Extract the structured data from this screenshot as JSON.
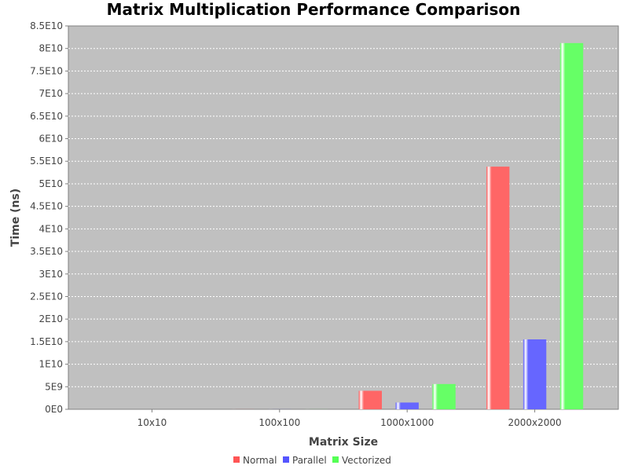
{
  "chart_data": {
    "type": "bar",
    "title": "Matrix Multiplication Performance Comparison",
    "xlabel": "Matrix Size",
    "ylabel": "Time (ns)",
    "categories": [
      "10x10",
      "100x100",
      "1000x1000",
      "2000x2000"
    ],
    "series": [
      {
        "name": "Normal",
        "color": "#ff5555",
        "values": [
          0,
          10000000.0,
          4100000000.0,
          53800000000.0
        ]
      },
      {
        "name": "Parallel",
        "color": "#5555ff",
        "values": [
          0,
          10000000.0,
          1500000000.0,
          15500000000.0
        ]
      },
      {
        "name": "Vectorized",
        "color": "#55ff55",
        "values": [
          0,
          10000000.0,
          5600000000.0,
          81200000000.0
        ]
      }
    ],
    "ylim": [
      0,
      85000000000
    ],
    "y_ticks": [
      {
        "value": 0,
        "label": "0E0"
      },
      {
        "value": 5000000000,
        "label": "5E9"
      },
      {
        "value": 10000000000,
        "label": "1E10"
      },
      {
        "value": 15000000000,
        "label": "1.5E10"
      },
      {
        "value": 20000000000,
        "label": "2E10"
      },
      {
        "value": 25000000000,
        "label": "2.5E10"
      },
      {
        "value": 30000000000,
        "label": "3E10"
      },
      {
        "value": 35000000000,
        "label": "3.5E10"
      },
      {
        "value": 40000000000,
        "label": "4E10"
      },
      {
        "value": 45000000000,
        "label": "4.5E10"
      },
      {
        "value": 50000000000,
        "label": "5E10"
      },
      {
        "value": 55000000000,
        "label": "5.5E10"
      },
      {
        "value": 60000000000,
        "label": "6E10"
      },
      {
        "value": 65000000000,
        "label": "6.5E10"
      },
      {
        "value": 70000000000,
        "label": "7E10"
      },
      {
        "value": 75000000000,
        "label": "7.5E10"
      },
      {
        "value": 80000000000,
        "label": "8E10"
      },
      {
        "value": 85000000000,
        "label": "8.5E10"
      }
    ],
    "grid": true,
    "legend_position": "bottom",
    "plot_background": "#c0c0c0",
    "grid_color": "#ffffff"
  }
}
